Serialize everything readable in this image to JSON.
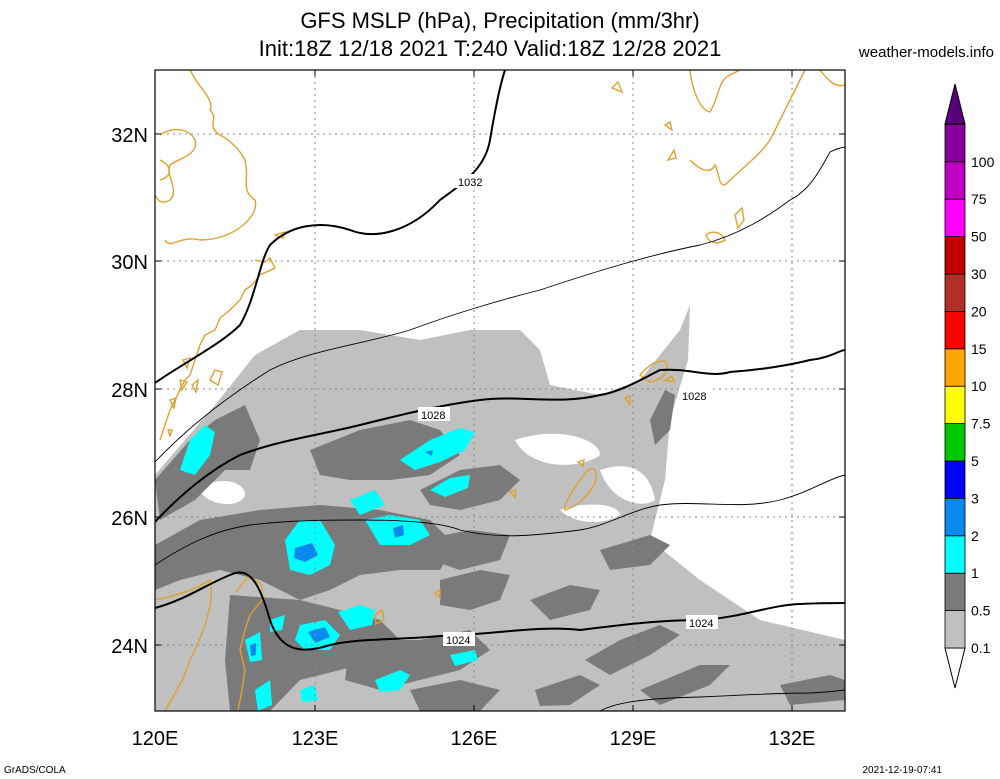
{
  "header": {
    "title_line1": "GFS MSLP (hPa), Precipitation (mm/3hr)",
    "title_line2": "Init:18Z 12/18 2021 T:240 Valid:18Z 12/28 2021",
    "site": "weather-models.info"
  },
  "footer": {
    "left": "GrADS/COLA",
    "right": "2021-12-19-07:41"
  },
  "map": {
    "lon_range": [
      120,
      133
    ],
    "lat_range": [
      23,
      33
    ],
    "lon_ticks": [
      "120E",
      "123E",
      "126E",
      "129E",
      "132E"
    ],
    "lat_ticks": [
      "24N",
      "26N",
      "28N",
      "30N",
      "32N"
    ],
    "grid": true,
    "coastline_color": "#e0a030",
    "isobar_labels": [
      "1032",
      "1028",
      "1028",
      "1024",
      "1024"
    ]
  },
  "colorbar": {
    "labels": [
      "0.1",
      "0.5",
      "1",
      "2",
      "3",
      "5",
      "7.5",
      "10",
      "15",
      "20",
      "30",
      "50",
      "75",
      "100"
    ],
    "colors": [
      "#c0c0c0",
      "#7a7a7a",
      "#00ffff",
      "#0a8af0",
      "#0000ff",
      "#00c800",
      "#ffff00",
      "#ffa500",
      "#ff0000",
      "#b03028",
      "#c00000",
      "#ff00ff",
      "#c000c0",
      "#880099",
      "#5a007a"
    ]
  }
}
